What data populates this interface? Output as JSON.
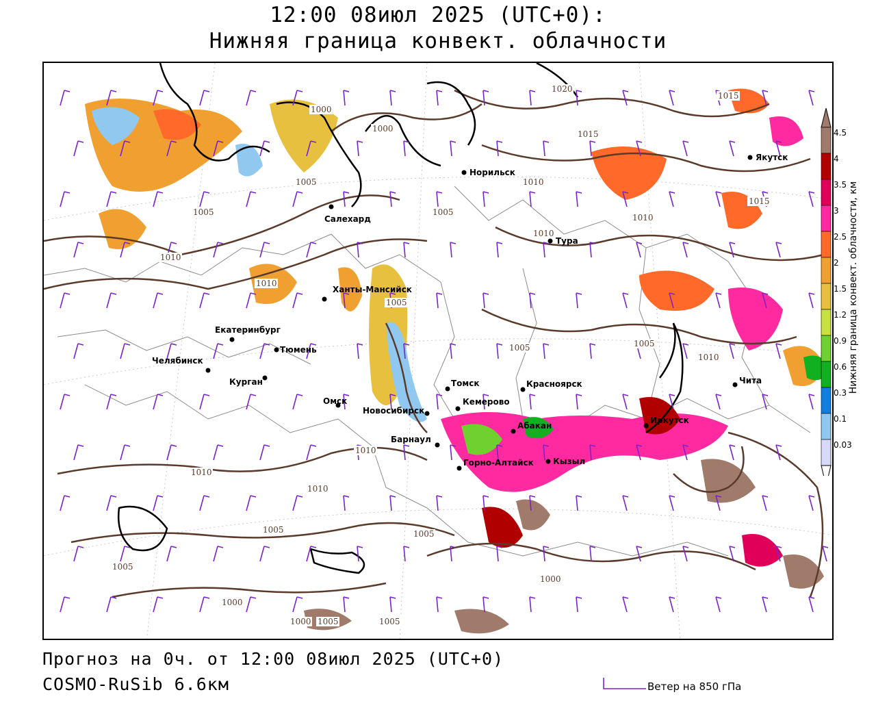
{
  "title": {
    "line1": "12:00 08июл 2025 (UTC+0):",
    "line2": "Нижняя граница конвект. облачности"
  },
  "footer": {
    "forecast": "Прогноз на 0ч. от 12:00 08июл 2025 (UTC+0)",
    "model": "COSMO-RuSib 6.6км",
    "wind_legend": "Ветер на 850 гПа"
  },
  "colorbar": {
    "label": "Нижняя граница конвект. облачности, км",
    "ticks": [
      "4.5",
      "4",
      "3.5",
      "3",
      "2.5",
      "2",
      "1.5",
      "1.2",
      "0.9",
      "0.6",
      "0.3",
      "0.1",
      "0.03"
    ],
    "colors": [
      "#a07a6a",
      "#b00000",
      "#e0005a",
      "#ff2aa0",
      "#ff6a2a",
      "#f0a030",
      "#e8c040",
      "#c8e040",
      "#70d030",
      "#10b020",
      "#1080e0",
      "#90c8f0",
      "#d8d8f8"
    ]
  },
  "colors": {
    "isobar": "#5a3a2a",
    "coast": "#000000",
    "borders": "#888888",
    "wind": "#7a22cc"
  },
  "cities": [
    {
      "name": "Норильск"
    },
    {
      "name": "Якутск"
    },
    {
      "name": "Салехард"
    },
    {
      "name": "Тура"
    },
    {
      "name": "Ханты-Мансийск"
    },
    {
      "name": "Екатеринбург"
    },
    {
      "name": "Тюмень"
    },
    {
      "name": "Челябинск"
    },
    {
      "name": "Курган"
    },
    {
      "name": "Омск"
    },
    {
      "name": "Томск"
    },
    {
      "name": "Красноярск"
    },
    {
      "name": "Кемерово"
    },
    {
      "name": "Новосибирск"
    },
    {
      "name": "Абакан"
    },
    {
      "name": "Барнаул"
    },
    {
      "name": "Горно-Алтайск"
    },
    {
      "name": "Кызыл"
    },
    {
      "name": "Иркутск"
    },
    {
      "name": "Чита"
    }
  ],
  "isobar_labels": [
    "1000",
    "1000",
    "1005",
    "1005",
    "1005",
    "1005",
    "1005",
    "1005",
    "1005",
    "1005",
    "1005",
    "1005",
    "1010",
    "1010",
    "1010",
    "1010",
    "1010",
    "1010",
    "1010",
    "1010",
    "1010",
    "1015",
    "1015",
    "1015",
    "1020",
    "1000",
    "1000",
    "1005",
    "1000"
  ]
}
